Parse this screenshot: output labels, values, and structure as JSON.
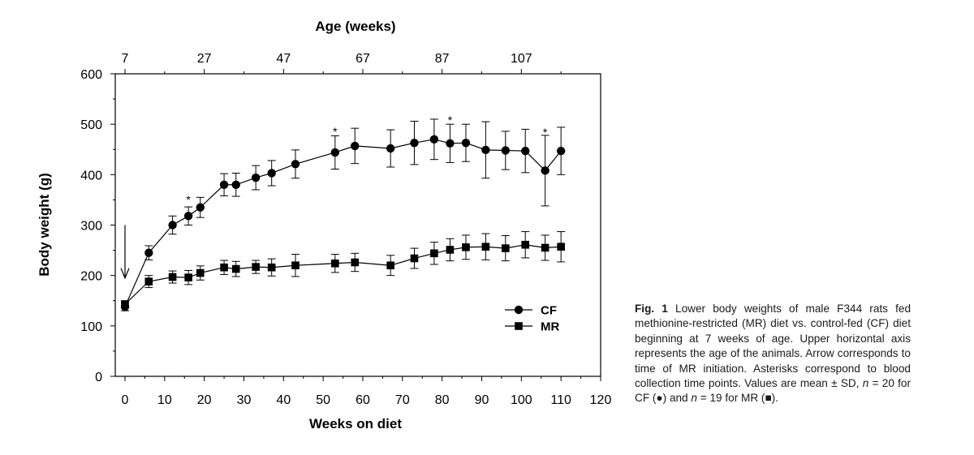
{
  "chart_data": {
    "type": "line",
    "xlabel": "Weeks on diet",
    "ylabel": "Body weight (g)",
    "top_axis_label": "Age (weeks)",
    "xlim": [
      0,
      120
    ],
    "ylim": [
      0,
      600
    ],
    "x_ticks": [
      "0",
      "10",
      "20",
      "30",
      "40",
      "50",
      "60",
      "70",
      "80",
      "90",
      "100",
      "110",
      "120"
    ],
    "y_ticks": [
      "0",
      "100",
      "200",
      "300",
      "400",
      "500",
      "600"
    ],
    "top_ticks": [
      {
        "label": "7",
        "week": 0
      },
      {
        "label": "27",
        "week": 20
      },
      {
        "label": "47",
        "week": 40
      },
      {
        "label": "67",
        "week": 60
      },
      {
        "label": "87",
        "week": 80
      },
      {
        "label": "107",
        "week": 100
      }
    ],
    "arrow": {
      "week": 0,
      "from": 300,
      "to": 195
    },
    "series": [
      {
        "name": "CF",
        "marker": "circle",
        "x": [
          0,
          6,
          12,
          16,
          19,
          25,
          28,
          33,
          37,
          43,
          53,
          58,
          67,
          73,
          78,
          82,
          86,
          91,
          96,
          101,
          106,
          110
        ],
        "y": [
          138,
          245,
          300,
          318,
          335,
          380,
          380,
          394,
          403,
          421,
          444,
          457,
          452,
          463,
          470,
          462,
          463,
          449,
          448,
          447,
          408,
          447
        ],
        "err": [
          8,
          14,
          18,
          18,
          20,
          22,
          23,
          24,
          25,
          28,
          33,
          35,
          37,
          43,
          40,
          38,
          37,
          56,
          38,
          43,
          70,
          47
        ]
      },
      {
        "name": "MR",
        "marker": "square",
        "x": [
          0,
          6,
          12,
          16,
          19,
          25,
          28,
          33,
          37,
          43,
          53,
          58,
          67,
          73,
          78,
          82,
          86,
          91,
          96,
          101,
          106,
          110
        ],
        "y": [
          143,
          188,
          197,
          196,
          205,
          216,
          213,
          217,
          216,
          220,
          224,
          226,
          220,
          234,
          244,
          251,
          256,
          257,
          254,
          261,
          255,
          257
        ],
        "err": [
          7,
          12,
          12,
          14,
          14,
          14,
          15,
          13,
          17,
          22,
          18,
          18,
          20,
          20,
          22,
          22,
          24,
          26,
          25,
          26,
          25,
          30
        ]
      }
    ],
    "annotations": [
      {
        "text": "*",
        "x": 16,
        "y": 352
      },
      {
        "text": "*",
        "x": 53,
        "y": 487
      },
      {
        "text": "*",
        "x": 82,
        "y": 510
      },
      {
        "text": "*",
        "x": 106,
        "y": 486
      }
    ],
    "legend": {
      "position": "bottom-right",
      "entries": [
        "CF",
        "MR"
      ]
    }
  },
  "caption": {
    "label": "Fig. 1",
    "text": " Lower body weights of male F344 rats fed methionine-restricted (MR) diet vs. control-fed (CF) diet beginning at 7 weeks of age. Upper horizontal axis represents the age of the animals. Arrow corresponds to time of MR initiation. Asterisks correspond to blood collection time points. Values are mean ± SD, ",
    "n1_symbol": "n",
    "n1_text": " = 20 for CF (●) and ",
    "n2_symbol": "n",
    "n2_text": " = 19 for MR (■)."
  }
}
